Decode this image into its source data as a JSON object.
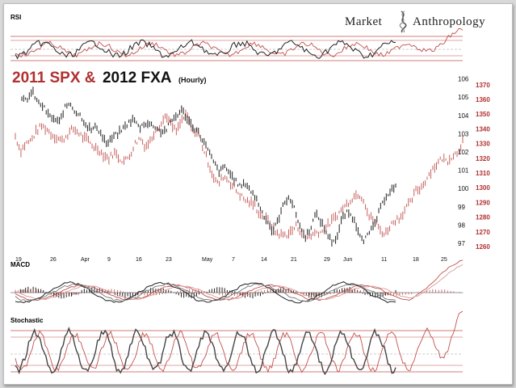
{
  "brand": {
    "part1": "Market",
    "part2": "Anthropology",
    "logo_icon": "dna-helix-icon"
  },
  "title": {
    "red": "2011 SPX &",
    "black": "2012 FXA",
    "note": "(Hourly)"
  },
  "colors": {
    "red_series": "#c0504d",
    "black_series": "#333333",
    "red_text": "#b03030"
  },
  "panels": {
    "rsi": "RSI",
    "macd": "MACD",
    "stochastic": "Stochastic"
  },
  "chart_data": {
    "type": "line",
    "title": "2011 SPX & 2012 FXA (Hourly)",
    "x_tick_labels": [
      "19",
      "26",
      "Apr",
      "9",
      "16",
      "23",
      "May",
      "7",
      "14",
      "21",
      "29",
      "Jun",
      "11",
      "18",
      "25"
    ],
    "y_left_label": "FXA",
    "y_left_ticks": [
      97,
      98,
      99,
      100,
      101,
      102,
      103,
      104,
      105,
      106
    ],
    "y_right_label": "SPX",
    "y_right_ticks": [
      1260,
      1270,
      1280,
      1290,
      1300,
      1310,
      1320,
      1330,
      1340,
      1350,
      1360,
      1370
    ],
    "series": [
      {
        "name": "2011 SPX",
        "color": "#c0504d",
        "axis": "right",
        "values": [
          1335,
          1325,
          1330,
          1332,
          1338,
          1342,
          1340,
          1336,
          1334,
          1332,
          1336,
          1340,
          1338,
          1334,
          1332,
          1328,
          1326,
          1322,
          1320,
          1324,
          1320,
          1318,
          1322,
          1330,
          1334,
          1328,
          1332,
          1340,
          1343,
          1350,
          1342,
          1338,
          1346,
          1350,
          1338,
          1338,
          1328,
          1318,
          1308,
          1302,
          1308,
          1305,
          1300,
          1296,
          1292,
          1290,
          1288,
          1282,
          1280,
          1276,
          1270,
          1268,
          1268,
          1270,
          1274,
          1270,
          1266,
          1268,
          1270,
          1270,
          1274,
          1278,
          1282,
          1286,
          1290,
          1294,
          1296,
          1292,
          1280,
          1278,
          1272,
          1268,
          1274,
          1278,
          1280,
          1286,
          1290,
          1298,
          1300,
          1306,
          1312,
          1316,
          1320,
          1318,
          1322,
          1324,
          1332
        ]
      },
      {
        "name": "2012 FXA",
        "color": "#333333",
        "axis": "left",
        "values": [
          104.8,
          104.9,
          105.3,
          104.7,
          104.5,
          104.0,
          103.8,
          103.6,
          104.4,
          104.7,
          104.2,
          104.0,
          103.5,
          103.2,
          103.4,
          102.9,
          102.4,
          102.8,
          103.0,
          103.3,
          103.6,
          103.8,
          103.3,
          103.6,
          103.5,
          103.4,
          103.1,
          103.2,
          103.7,
          104.0,
          104.3,
          103.8,
          103.4,
          103.1,
          102.6,
          102.0,
          101.4,
          100.9,
          101.2,
          100.8,
          100.4,
          100.1,
          100.3,
          99.8,
          99.4,
          98.7,
          98.2,
          97.6,
          98.3,
          99.1,
          99.6,
          98.9,
          98.0,
          97.3,
          97.8,
          98.6,
          98.2,
          97.6,
          97.1,
          97.3,
          98.4,
          98.7,
          98.4,
          97.7,
          97.2,
          97.5,
          98.0,
          98.8,
          99.5,
          99.9,
          100.1
        ]
      }
    ],
    "grid": false,
    "legend": "title"
  }
}
